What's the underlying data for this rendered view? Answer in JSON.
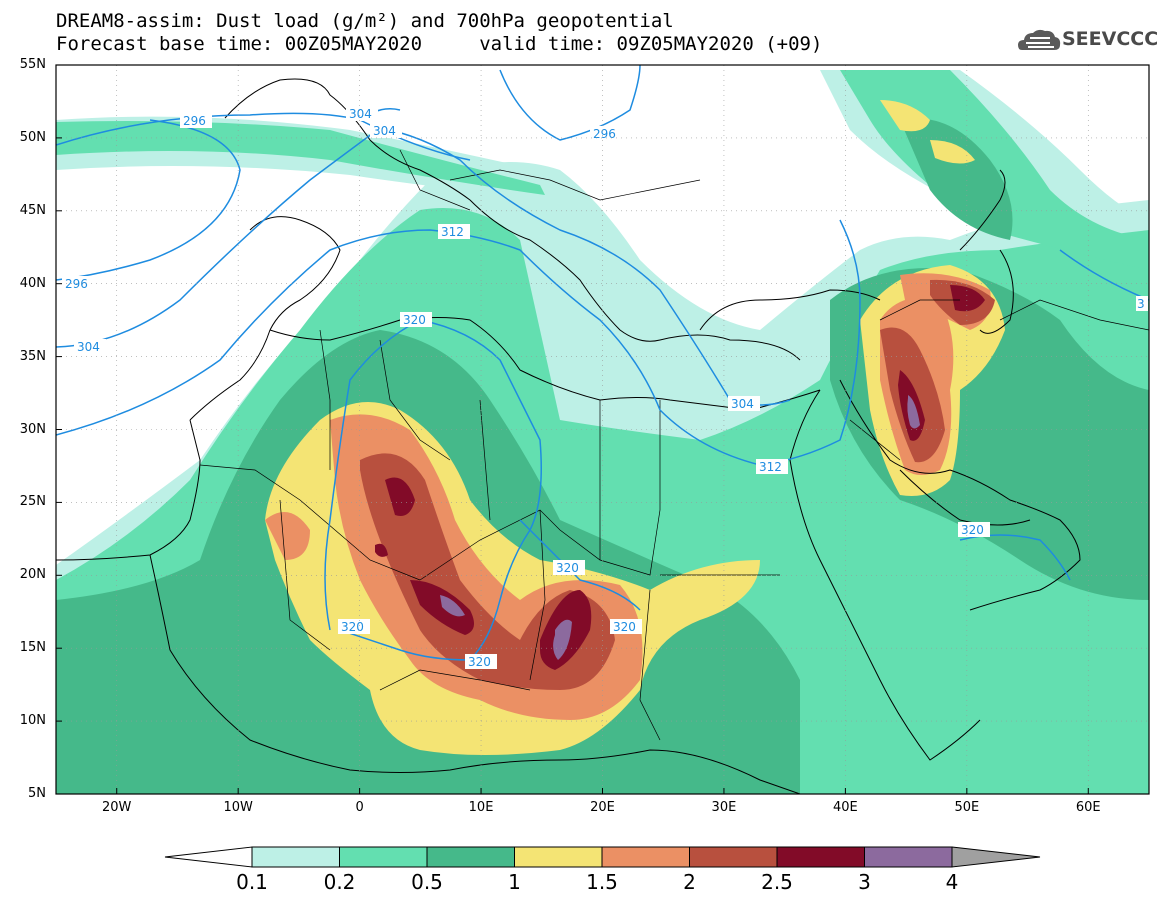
{
  "title": {
    "line1": "DREAM8-assim: Dust load (g/m²) and 700hPa geopotential",
    "line2": "Forecast base time: 00Z05MAY2020     valid time: 09Z05MAY2020 (+09)"
  },
  "logo": {
    "text": "SEEVCCC",
    "icon": "cloud-icon"
  },
  "map": {
    "lon_range": [
      -25,
      65
    ],
    "lat_range": [
      5,
      55
    ],
    "lat_ticks": [
      "55N",
      "50N",
      "45N",
      "40N",
      "35N",
      "30N",
      "25N",
      "20N",
      "15N",
      "10N",
      "5N"
    ],
    "lon_ticks": [
      "20W",
      "10W",
      "0",
      "10E",
      "20E",
      "30E",
      "40E",
      "50E",
      "60E"
    ],
    "contour_labels": [
      "296",
      "304",
      "304",
      "296",
      "312",
      "296",
      "304",
      "320",
      "304",
      "312",
      "320",
      "320",
      "320",
      "320",
      "320",
      "3"
    ],
    "colors": {
      "dust_0.1": "#bdf0e6",
      "dust_0.2": "#63dfb0",
      "dust_0.5": "#45b98a",
      "dust_1": "#f4e474",
      "dust_1.5": "#eb9064",
      "dust_2": "#b8503e",
      "dust_2.5": "#820b28",
      "dust_3": "#8c6a9e",
      "dust_4": "#a0a0a0",
      "contour": "#1e8ce0"
    }
  },
  "colorbar": {
    "labels": [
      "0.1",
      "0.2",
      "0.5",
      "1",
      "1.5",
      "2",
      "2.5",
      "3",
      "4"
    ],
    "colors": [
      "#bdf0e6",
      "#63dfb0",
      "#45b98a",
      "#f4e474",
      "#eb9064",
      "#b8503e",
      "#820b28",
      "#8c6a9e"
    ]
  }
}
